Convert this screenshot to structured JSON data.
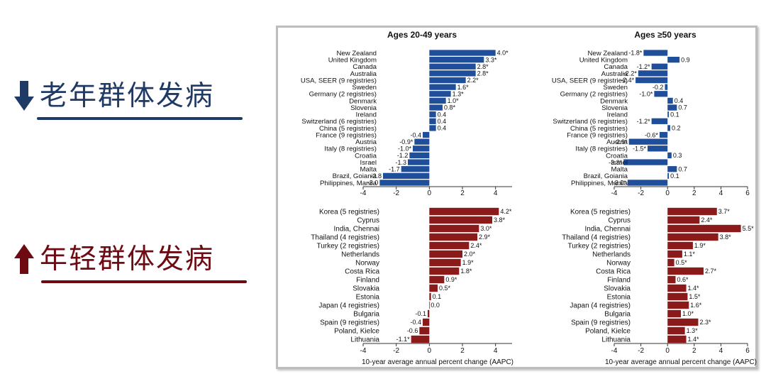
{
  "legend": {
    "older": {
      "label": "老年群体发病",
      "icon": "arrow-down-icon",
      "color": "#1f3a64"
    },
    "younger": {
      "label": "年轻群体发病",
      "icon": "arrow-up-icon",
      "color": "#6e0a12"
    }
  },
  "colors": {
    "blue": "#1f4e9a",
    "red": "#8b1a1a"
  },
  "chart_data": [
    {
      "type": "bar",
      "id": "tl",
      "panel": "top-left",
      "title": "Ages 20-49 years",
      "xlabel": "",
      "xlim": [
        -4,
        5
      ],
      "xticks": [
        "-4",
        "-2",
        "0",
        "2",
        "4"
      ],
      "color": "blue",
      "categories": [
        "New Zealand",
        "United Kingdom",
        "Canada",
        "Australia",
        "USA, SEER (9 registries)",
        "Sweden",
        "Germany (2 registries)",
        "Denmark",
        "Slovenia",
        "Ireland",
        "Switzerland (6 registries)",
        "China (5 registries)",
        "France (9 registries)",
        "Austria",
        "Italy (8 registries)",
        "Croatia",
        "Israel",
        "Malta",
        "Brazil, Goiania",
        "Philippines, Manila"
      ],
      "values": [
        4.0,
        3.3,
        2.8,
        2.8,
        2.2,
        1.6,
        1.3,
        1.0,
        0.8,
        0.4,
        0.4,
        0.4,
        -0.4,
        -0.9,
        -1.0,
        -1.2,
        -1.3,
        -1.7,
        -2.8,
        -3.0
      ],
      "labels": [
        "4.0*",
        "3.3*",
        "2.8*",
        "2.8*",
        "2.2*",
        "1.6*",
        "1.3*",
        "1.0*",
        "0.8*",
        "0.4",
        "0.4",
        "0.4",
        "-0.4",
        "-0.9*",
        "-1.0*",
        "-1.2",
        "-1.3",
        "-1.7",
        "-2.8",
        "-3.0"
      ]
    },
    {
      "type": "bar",
      "id": "tr",
      "panel": "top-right",
      "title": "Ages ≥50 years",
      "xlabel": "",
      "xlim": [
        -4,
        6
      ],
      "xticks": [
        "-4",
        "-2",
        "0",
        "2",
        "4",
        "6"
      ],
      "color": "blue",
      "categories": [
        "New Zealand",
        "United Kingdom",
        "Canada",
        "Australia",
        "USA, SEER (9 registries)",
        "Sweden",
        "Germany (2 registries)",
        "Denmark",
        "Slovenia",
        "Ireland",
        "Switzerland (6 registries)",
        "China (5 registries)",
        "France (9 registries)",
        "Austria",
        "Italy (8 registries)",
        "Croatia",
        "Israel",
        "Malta",
        "Brazil, Goiania",
        "Philippines, Manila"
      ],
      "values": [
        -1.8,
        0.9,
        -1.2,
        -2.2,
        -2.4,
        -0.2,
        -1.0,
        0.4,
        0.7,
        0.1,
        -1.2,
        0.2,
        -0.6,
        -2.9,
        -1.5,
        0.3,
        -3.3,
        0.7,
        0.1,
        -3.0
      ],
      "labels": [
        "-1.8*",
        "0.9",
        "-1.2*",
        "-2.2*",
        "-2.4*",
        "-0.2",
        "-1.0*",
        "0.4",
        "0.7",
        "0.1",
        "-1.2*",
        "0.2",
        "-0.6*",
        "-2.9*",
        "-1.5*",
        "0.3",
        "-3.3*",
        "0.7",
        "0.1",
        "-3.0*"
      ]
    },
    {
      "type": "bar",
      "id": "bl",
      "panel": "bottom-left",
      "title": "",
      "xlabel": "10-year average annual percent change (AAPC)",
      "xlim": [
        -4,
        5
      ],
      "xticks": [
        "-4",
        "-2",
        "0",
        "2",
        "4"
      ],
      "color": "red",
      "categories": [
        "Korea (5 registries)",
        "Cyprus",
        "India, Chennai",
        "Thailand (4 registries)",
        "Turkey (2 registries)",
        "Netherlands",
        "Norway",
        "Costa Rica",
        "Finland",
        "Slovakia",
        "Estonia",
        "Japan (4 registries)",
        "Bulgaria",
        "Spain (9 registries)",
        "Poland, Kielce",
        "Lithuania"
      ],
      "values": [
        4.2,
        3.8,
        3.0,
        2.9,
        2.4,
        2.0,
        1.9,
        1.8,
        0.9,
        0.5,
        0.1,
        0.0,
        -0.1,
        -0.4,
        -0.6,
        -1.1
      ],
      "labels": [
        "4.2*",
        "3.8*",
        "3.0*",
        "2.9*",
        "2.4*",
        "2.0*",
        "1.9*",
        "1.8*",
        "0.9*",
        "0.5*",
        "0.1",
        "0.0",
        "-0.1",
        "-0.4",
        "-0.6",
        "-1.1*"
      ]
    },
    {
      "type": "bar",
      "id": "br",
      "panel": "bottom-right",
      "title": "",
      "xlabel": "10-year average annual percent change (AAPC)",
      "xlim": [
        -4,
        6
      ],
      "xticks": [
        "-4",
        "-2",
        "0",
        "2",
        "4",
        "6"
      ],
      "color": "red",
      "categories": [
        "Korea (5 registries)",
        "Cyprus",
        "India, Chennai",
        "Thailand (4 registries)",
        "Turkey (2 registries)",
        "Netherlands",
        "Norway",
        "Costa Rica",
        "Finland",
        "Slovakia",
        "Estonia",
        "Japan (4 registries)",
        "Bulgaria",
        "Spain (9 registries)",
        "Poland, Kielce",
        "Lithuania"
      ],
      "values": [
        3.7,
        2.4,
        5.5,
        3.8,
        1.9,
        1.1,
        0.5,
        2.7,
        0.6,
        1.4,
        1.5,
        1.6,
        1.0,
        2.3,
        1.3,
        1.4
      ],
      "labels": [
        "3.7*",
        "2.4*",
        "5.5*",
        "3.8*",
        "1.9*",
        "1.1*",
        "0.5*",
        "2.7*",
        "0.6*",
        "1.4*",
        "1.5*",
        "1.6*",
        "1.0*",
        "2.3*",
        "1.3*",
        "1.4*"
      ]
    }
  ]
}
